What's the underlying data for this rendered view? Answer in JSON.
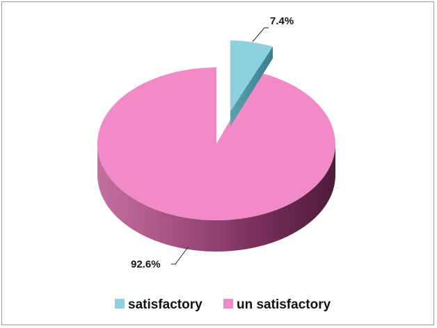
{
  "chart_data": {
    "type": "pie",
    "style": "3d-exploded",
    "slices": [
      {
        "label": "satisfactory",
        "value": 7.4,
        "display": "7.4%",
        "color": "#8fd0df",
        "exploded": true
      },
      {
        "label": "un satisfactory",
        "value": 92.6,
        "display": "92.6%",
        "color": "#f08ac8",
        "exploded": false
      }
    ],
    "legend": {
      "position": "bottom"
    }
  }
}
